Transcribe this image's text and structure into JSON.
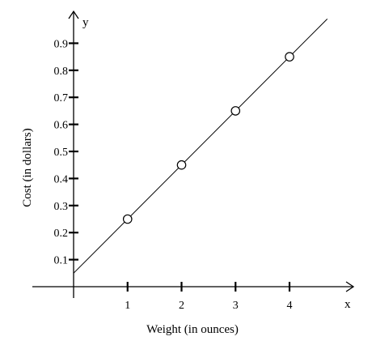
{
  "chart_data": {
    "type": "line",
    "xlabel": "Weight (in ounces)",
    "ylabel": "Cost (in dollars)",
    "x_axis_letter": "x",
    "y_axis_letter": "y",
    "xlim": [
      -1.05,
      4.2
    ],
    "ylim": [
      -0.04,
      1.0
    ],
    "x_ticks": [
      1,
      2,
      3,
      4
    ],
    "x_tick_labels": [
      "1",
      "2",
      "3",
      "4"
    ],
    "y_ticks": [
      0.1,
      0.2,
      0.3,
      0.4,
      0.5,
      0.6,
      0.7,
      0.8,
      0.9
    ],
    "y_tick_labels": [
      "0.1",
      "0.2",
      "0.3",
      "0.4",
      "0.5",
      "0.6",
      "0.7",
      "0.8",
      "0.9"
    ],
    "line": {
      "x": [
        0,
        4.7
      ],
      "y": [
        0.05,
        0.99
      ]
    },
    "points": {
      "x": [
        1,
        2,
        3,
        4
      ],
      "y": [
        0.25,
        0.45,
        0.65,
        0.85
      ]
    },
    "grid": false,
    "legend": "none",
    "colors": {
      "axis": "#000000",
      "line": "#000000",
      "marker_fill": "#ffffff"
    }
  }
}
